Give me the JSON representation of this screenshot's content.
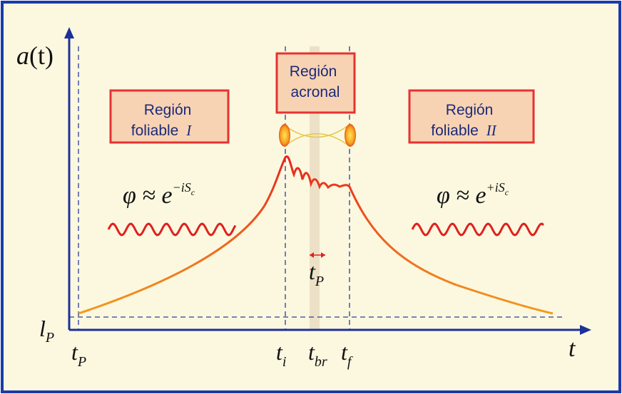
{
  "axes": {
    "y_label": {
      "base": "a",
      "rest": "(t)"
    },
    "x_label": "t"
  },
  "ticks": {
    "lP": {
      "base": "l",
      "sub": "P"
    },
    "tP": {
      "base": "t",
      "sub": "P"
    },
    "ti": {
      "base": "t",
      "sub": "i"
    },
    "tbr": {
      "base": "t",
      "sub": "br"
    },
    "tf": {
      "base": "t",
      "sub": "f"
    }
  },
  "planck_width": {
    "base": "t",
    "sub": "P"
  },
  "regions": [
    {
      "line1": "Región",
      "line2": "foliable",
      "numeral": "I"
    },
    {
      "line1": "Región",
      "line2": "acronal"
    },
    {
      "line1": "Región",
      "line2": "foliable",
      "numeral": "II"
    }
  ],
  "formulas": [
    {
      "lhs": "φ ≈ e",
      "exp": "−iS",
      "exp_sub": "c"
    },
    {
      "lhs": "φ ≈ e",
      "exp": "+iS",
      "exp_sub": "c"
    }
  ]
}
